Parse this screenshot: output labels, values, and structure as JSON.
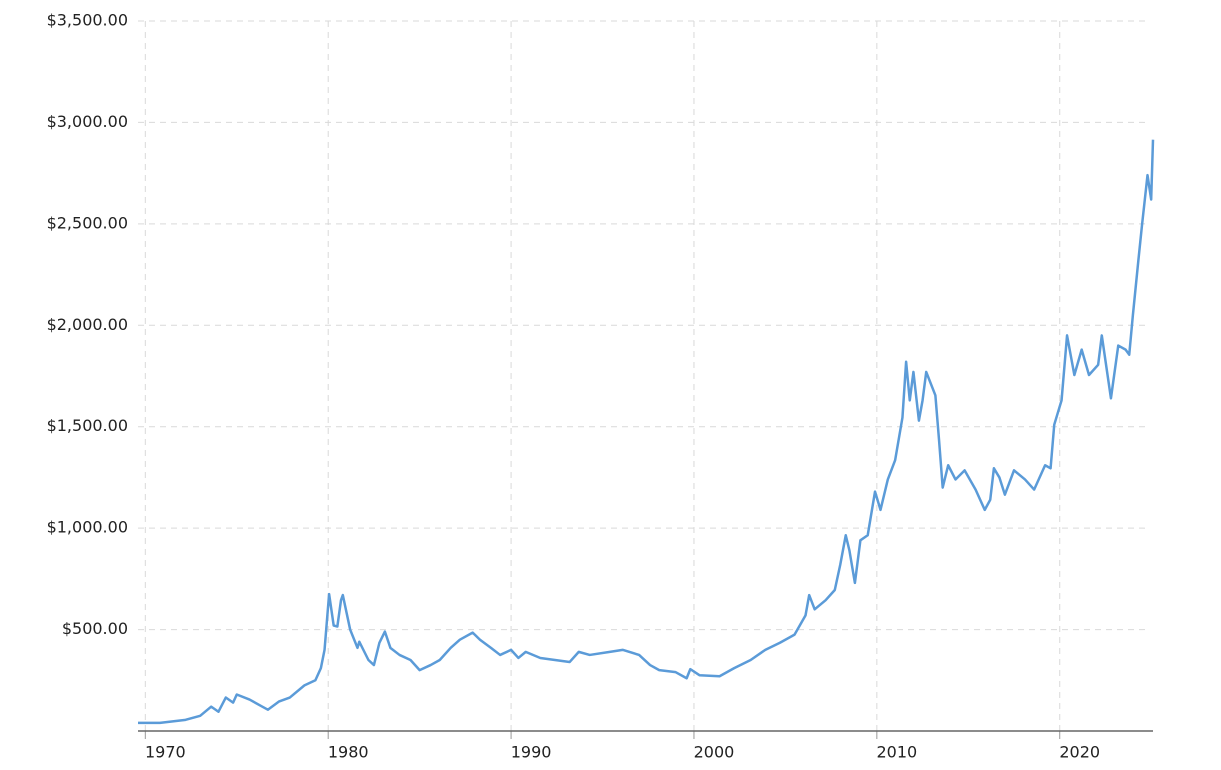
{
  "chart_data": {
    "type": "line",
    "x": [
      1969.6,
      1970.8,
      1972.2,
      1973,
      1973.6,
      1974,
      1974.4,
      1974.8,
      1975,
      1975.7,
      1976.4,
      1976.7,
      1977.3,
      1977.9,
      1978.7,
      1979.3,
      1979.6,
      1979.8,
      1980.05,
      1980.3,
      1980.5,
      1980.7,
      1980.8,
      1981.2,
      1981.6,
      1981.7,
      1982.2,
      1982.5,
      1982.8,
      1983.1,
      1983.4,
      1983.9,
      1984.5,
      1985,
      1985.6,
      1986.1,
      1986.7,
      1987.2,
      1987.9,
      1988.3,
      1988.9,
      1989.4,
      1990,
      1990.4,
      1990.8,
      1991.6,
      1992.4,
      1993.2,
      1993.7,
      1994.3,
      1995.4,
      1996.1,
      1997,
      1997.6,
      1998.1,
      1999,
      1999.6,
      1999.8,
      2000.3,
      2001.4,
      2002.2,
      2003.1,
      2003.9,
      2004.7,
      2005.5,
      2006.1,
      2006.3,
      2006.6,
      2007.2,
      2007.7,
      2008,
      2008.3,
      2008.5,
      2008.8,
      2009.1,
      2009.5,
      2009.9,
      2010.2,
      2010.6,
      2011,
      2011.4,
      2011.6,
      2011.8,
      2012,
      2012.3,
      2012.5,
      2012.7,
      2013.2,
      2013.4,
      2013.6,
      2013.9,
      2014.3,
      2014.8,
      2015.4,
      2015.9,
      2016.2,
      2016.4,
      2016.7,
      2017,
      2017.5,
      2018.1,
      2018.6,
      2019.2,
      2019.5,
      2019.7,
      2020.1,
      2020.4,
      2020.8,
      2021.2,
      2021.6,
      2022.1,
      2022.3,
      2022.8,
      2023.2,
      2023.6,
      2023.8,
      2024,
      2024.3,
      2024.5,
      2024.8,
      2025,
      2025.1
    ],
    "series": [
      {
        "color": "#5b9bd8",
        "values": [
          40,
          40,
          55,
          75,
          120,
          95,
          165,
          140,
          180,
          155,
          120,
          105,
          145,
          165,
          225,
          250,
          310,
          400,
          675,
          520,
          515,
          645,
          670,
          500,
          410,
          440,
          350,
          325,
          435,
          490,
          410,
          375,
          350,
          300,
          325,
          350,
          410,
          450,
          485,
          450,
          410,
          375,
          400,
          360,
          390,
          360,
          350,
          340,
          390,
          375,
          390,
          400,
          375,
          325,
          300,
          290,
          260,
          305,
          275,
          270,
          310,
          350,
          400,
          435,
          475,
          570,
          670,
          600,
          645,
          695,
          820,
          965,
          890,
          730,
          940,
          965,
          1180,
          1090,
          1240,
          1335,
          1545,
          1820,
          1630,
          1770,
          1530,
          1630,
          1770,
          1655,
          1435,
          1200,
          1310,
          1240,
          1285,
          1190,
          1090,
          1140,
          1295,
          1250,
          1165,
          1285,
          1240,
          1190,
          1310,
          1295,
          1510,
          1630,
          1950,
          1755,
          1880,
          1755,
          1805,
          1950,
          1640,
          1900,
          1880,
          1855,
          2050,
          2320,
          2495,
          2740,
          2620,
          2915
        ]
      }
    ],
    "xlim": [
      1969.6,
      2025.1
    ],
    "xticks": [
      1970,
      1980,
      1990,
      2000,
      2010,
      2020
    ],
    "ylim": [
      0,
      3500
    ],
    "yticks": [
      {
        "value": 500,
        "label": "$500.00"
      },
      {
        "value": 1000,
        "label": "$1,000.00"
      },
      {
        "value": 1500,
        "label": "$1,500.00"
      },
      {
        "value": 2000,
        "label": "$2,000.00"
      },
      {
        "value": 2500,
        "label": "$2,500.00"
      },
      {
        "value": 3000,
        "label": "$3,000.00"
      },
      {
        "value": 3500,
        "label": "$3,500.00"
      }
    ],
    "grid": true
  }
}
